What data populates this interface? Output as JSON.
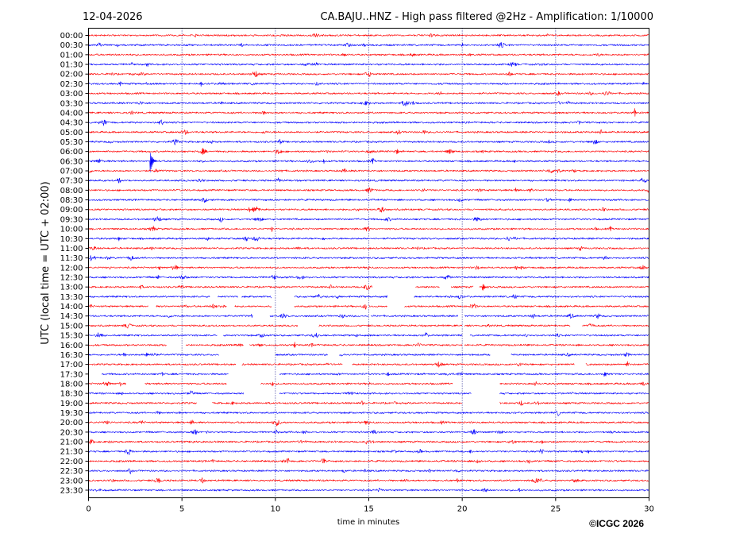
{
  "chart_data": {
    "type": "line",
    "date": "12-04-2026",
    "title": "CA.BAJU..HNZ - High pass filtered @2Hz - Amplification: 1/10000",
    "xlabel": "time in minutes",
    "ylabel": "UTC (local time = UTC + 02:00)",
    "xlim": [
      0,
      30
    ],
    "xticks": [
      0,
      5,
      10,
      15,
      20,
      25,
      30
    ],
    "grid_x": true,
    "row_labels": [
      "00:00",
      "00:30",
      "01:00",
      "01:30",
      "02:00",
      "02:30",
      "03:00",
      "03:30",
      "04:00",
      "04:30",
      "05:00",
      "05:30",
      "06:00",
      "06:30",
      "07:00",
      "07:30",
      "08:00",
      "08:30",
      "09:00",
      "09:30",
      "10:00",
      "10:30",
      "11:00",
      "11:30",
      "12:00",
      "12:30",
      "13:00",
      "13:30",
      "14:00",
      "14:30",
      "15:00",
      "15:30",
      "16:00",
      "16:30",
      "17:00",
      "17:30",
      "18:00",
      "18:30",
      "19:00",
      "19:30",
      "20:00",
      "20:30",
      "21:00",
      "21:30",
      "22:00",
      "22:30",
      "23:00",
      "23:30"
    ],
    "trace_colors": [
      "#ff0000",
      "#0000ff"
    ],
    "events": [
      {
        "row": "06:30",
        "minute": 3.3,
        "amplitude": 1.4
      },
      {
        "row": "13:00",
        "minute": 21.1,
        "amplitude": 0.4
      },
      {
        "row": "16:30",
        "minute": 3.1,
        "amplitude": 0.2
      },
      {
        "row": "17:30",
        "minute": 27.6,
        "amplitude": 0.4
      }
    ],
    "data_gaps": [
      {
        "row": "13:00",
        "from": 15.2,
        "to": 17.5
      },
      {
        "row": "13:00",
        "from": 18.8,
        "to": 19.4
      },
      {
        "row": "13:00",
        "from": 20.6,
        "to": 20.9
      },
      {
        "row": "13:30",
        "from": 6.5,
        "to": 6.9
      },
      {
        "row": "13:30",
        "from": 8.0,
        "to": 8.2
      },
      {
        "row": "13:30",
        "from": 9.8,
        "to": 11.0
      },
      {
        "row": "13:30",
        "from": 16.0,
        "to": 17.4
      },
      {
        "row": "14:00",
        "from": 3.2,
        "to": 3.6
      },
      {
        "row": "14:00",
        "from": 7.4,
        "to": 7.8
      },
      {
        "row": "14:00",
        "from": 9.8,
        "to": 11.0
      },
      {
        "row": "14:00",
        "from": 14.9,
        "to": 15.0
      },
      {
        "row": "14:00",
        "from": 16.0,
        "to": 16.9
      },
      {
        "row": "14:30",
        "from": 8.8,
        "to": 9.7
      },
      {
        "row": "14:30",
        "from": 15.0,
        "to": 15.1
      },
      {
        "row": "14:30",
        "from": 19.8,
        "to": 20.1
      },
      {
        "row": "15:00",
        "from": 11.2,
        "to": 12.3
      },
      {
        "row": "15:00",
        "from": 20.0,
        "to": 20.1
      },
      {
        "row": "15:00",
        "from": 25.8,
        "to": 26.4
      },
      {
        "row": "15:30",
        "from": 6.9,
        "to": 7.2
      },
      {
        "row": "15:30",
        "from": 20.0,
        "to": 20.4
      },
      {
        "row": "16:00",
        "from": 4.2,
        "to": 5.2
      },
      {
        "row": "16:00",
        "from": 8.3,
        "to": 8.6
      },
      {
        "row": "16:00",
        "from": 20.0,
        "to": 20.1
      },
      {
        "row": "16:30",
        "from": 7.0,
        "to": 10.0
      },
      {
        "row": "16:30",
        "from": 12.8,
        "to": 13.4
      },
      {
        "row": "16:30",
        "from": 21.5,
        "to": 22.6
      },
      {
        "row": "17:00",
        "from": 7.9,
        "to": 8.2
      },
      {
        "row": "17:00",
        "from": 13.6,
        "to": 14.1
      },
      {
        "row": "17:00",
        "from": 26.0,
        "to": 26.6
      },
      {
        "row": "17:30",
        "from": 0.0,
        "to": 0.7
      },
      {
        "row": "17:30",
        "from": 7.5,
        "to": 10.2
      },
      {
        "row": "18:00",
        "from": 2.0,
        "to": 3.0
      },
      {
        "row": "18:00",
        "from": 7.4,
        "to": 9.2
      },
      {
        "row": "18:00",
        "from": 19.5,
        "to": 22.0
      },
      {
        "row": "18:30",
        "from": 8.3,
        "to": 10.2
      },
      {
        "row": "18:30",
        "from": 20.5,
        "to": 22.0
      },
      {
        "row": "19:00",
        "from": 5.8,
        "to": 6.6
      },
      {
        "row": "19:00",
        "from": 20.0,
        "to": 22.0
      }
    ]
  },
  "footer": {
    "copyright": "©ICGC 2026"
  }
}
